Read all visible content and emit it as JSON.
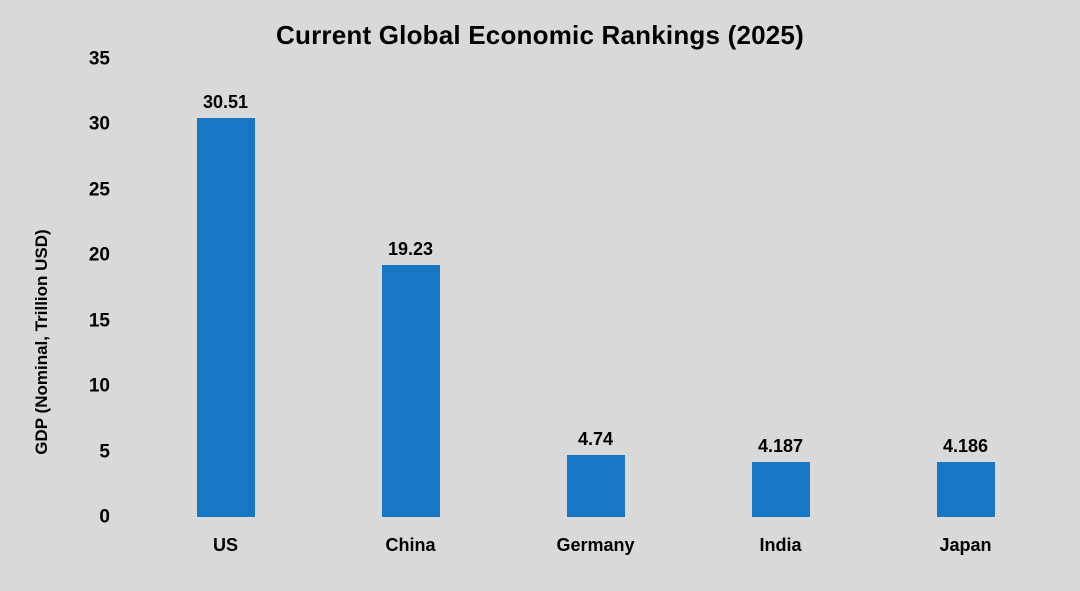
{
  "chart_data": {
    "type": "bar",
    "title": "Current Global Economic Rankings (2025)",
    "xlabel": "",
    "ylabel": "GDP (Nominal, Trillion USD)",
    "categories": [
      "US",
      "China",
      "Germany",
      "India",
      "Japan"
    ],
    "values": [
      30.51,
      19.23,
      4.74,
      4.187,
      4.186
    ],
    "value_labels": [
      "30.51",
      "19.23",
      "4.74",
      "4.187",
      "4.186"
    ],
    "yticks": [
      "0",
      "5",
      "10",
      "15",
      "20",
      "25",
      "30",
      "35"
    ],
    "ytick_values": [
      0,
      5,
      10,
      15,
      20,
      25,
      30,
      35
    ],
    "ylim": [
      0,
      35
    ],
    "grid": false,
    "legend": "none",
    "colors": {
      "bar": "#1777c4",
      "background": "#d9d9d9",
      "text": "#000000"
    }
  }
}
